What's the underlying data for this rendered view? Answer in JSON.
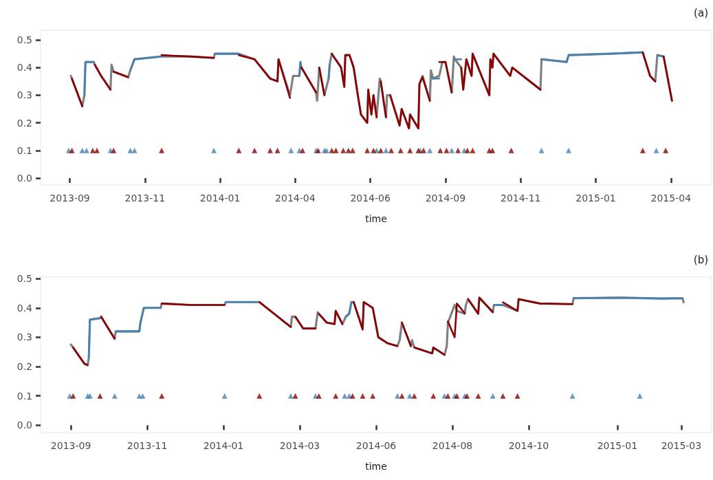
{
  "chart_data": [
    {
      "type": "line",
      "title": "(a)",
      "xlabel": "time",
      "xlim": [
        "2013-08-04",
        "2015-05-09"
      ],
      "xticks": [
        {
          "value": "2013-09-01",
          "label": "2013-09"
        },
        {
          "value": "2013-11-12",
          "label": "2013-11"
        },
        {
          "value": "2014-01-23",
          "label": "2014-01"
        },
        {
          "value": "2014-04-05",
          "label": "2014-04"
        },
        {
          "value": "2014-06-16",
          "label": "2014-06"
        },
        {
          "value": "2014-08-27",
          "label": "2014-09"
        },
        {
          "value": "2014-11-07",
          "label": "2014-11"
        },
        {
          "value": "2015-01-18",
          "label": "2015-01"
        },
        {
          "value": "2015-03-31",
          "label": "2015-04"
        }
      ],
      "ylim": [
        -0.025,
        0.535
      ],
      "yticks": [
        {
          "value": 0,
          "label": "0.0"
        },
        0.1,
        0.2,
        0.3,
        0.4,
        0.5
      ],
      "grid": false,
      "x": [
        "2013-09-02",
        "2013-09-03",
        "2013-09-13",
        "2013-09-15",
        "2013-09-16",
        "2013-09-24",
        "2013-09-25",
        "2013-10-01",
        "2013-10-10",
        "2013-10-11",
        "2013-10-13",
        "2013-10-27",
        "2013-10-29",
        "2013-11-02",
        "2013-11-28",
        "2013-12-25",
        "2014-01-17",
        "2014-01-18",
        "2014-02-10",
        "2014-02-25",
        "2014-03-12",
        "2014-03-19",
        "2014-03-20",
        "2014-03-31",
        "2014-04-03",
        "2014-04-09",
        "2014-04-10",
        "2014-04-11",
        "2014-04-25",
        "2014-04-26",
        "2014-04-28",
        "2014-05-03",
        "2014-05-07",
        "2014-05-08",
        "2014-05-10",
        "2014-05-19",
        "2014-05-22",
        "2014-05-23",
        "2014-05-27",
        "2014-05-31",
        "2014-06-04",
        "2014-06-07",
        "2014-06-13",
        "2014-06-14",
        "2014-06-17",
        "2014-06-19",
        "2014-06-22",
        "2014-06-25",
        "2014-06-26",
        "2014-07-01",
        "2014-07-02",
        "2014-07-05",
        "2014-07-14",
        "2014-07-16",
        "2014-07-23",
        "2014-07-24",
        "2014-08-01",
        "2014-08-02",
        "2014-08-05",
        "2014-08-12",
        "2014-08-13",
        "2014-08-15",
        "2014-08-21",
        "2014-08-24",
        "2014-08-27",
        "2014-09-02",
        "2014-09-04",
        "2014-09-05",
        "2014-09-11",
        "2014-09-13",
        "2014-09-16",
        "2014-09-21",
        "2014-09-22",
        "2014-10-08",
        "2014-10-09",
        "2014-10-11",
        "2014-10-12",
        "2014-10-28",
        "2014-10-30",
        "2014-11-26",
        "2014-11-27",
        "2014-12-21",
        "2014-12-23",
        "2015-02-01",
        "2015-03-04",
        "2015-03-11",
        "2015-03-16",
        "2015-03-18",
        "2015-03-24",
        "2015-04-01"
      ],
      "series": [
        {
          "color": "#808080",
          "values": [
            0.37,
            0.36,
            0.26,
            0.3,
            0.42,
            0.42,
            0.41,
            0.37,
            0.32,
            0.41,
            0.385,
            0.365,
            0.39,
            0.43,
            0.44,
            0.44,
            0.435,
            0.45,
            0.45,
            0.43,
            0.36,
            0.35,
            0.43,
            0.3,
            0.37,
            0.37,
            0.42,
            0.4,
            0.31,
            0.28,
            0.4,
            0.3,
            0.36,
            0.41,
            0.45,
            0.4,
            0.33,
            0.445,
            0.445,
            0.4,
            0.3,
            0.23,
            0.2,
            0.32,
            0.23,
            0.3,
            0.22,
            0.36,
            0.35,
            0.22,
            0.3,
            0.3,
            0.19,
            0.25,
            0.18,
            0.23,
            0.18,
            0.34,
            0.37,
            0.28,
            0.39,
            0.36,
            0.37,
            0.42,
            0.42,
            0.31,
            0.44,
            0.43,
            0.4,
            0.32,
            0.43,
            0.37,
            0.45,
            0.3,
            0.43,
            0.4,
            0.45,
            0.37,
            0.4,
            0.32,
            0.43,
            0.42,
            0.445,
            0.45,
            0.455,
            0.37,
            0.35,
            0.445,
            0.44,
            0.28
          ]
        },
        {
          "color": "#4682b4",
          "values": [
            null,
            null,
            null,
            0.3,
            0.42,
            0.42,
            null,
            null,
            null,
            null,
            null,
            null,
            0.39,
            0.43,
            0.44,
            null,
            null,
            0.45,
            0.45,
            null,
            null,
            null,
            null,
            null,
            null,
            0.37,
            0.42,
            null,
            null,
            null,
            null,
            null,
            0.36,
            0.41,
            null,
            null,
            null,
            null,
            null,
            null,
            null,
            null,
            null,
            null,
            null,
            null,
            null,
            null,
            null,
            null,
            null,
            null,
            null,
            null,
            null,
            null,
            null,
            null,
            null,
            null,
            null,
            0.36,
            0.36,
            null,
            null,
            null,
            null,
            0.43,
            0.43,
            null,
            null,
            null,
            null,
            null,
            null,
            null,
            null,
            null,
            null,
            null,
            0.43,
            0.42,
            0.445,
            0.45,
            0.455,
            null,
            null,
            0.445,
            0.44,
            null
          ]
        },
        {
          "color": "#8b0000",
          "values": [
            null,
            0.36,
            0.26,
            null,
            null,
            null,
            0.41,
            0.37,
            0.32,
            null,
            0.385,
            0.365,
            null,
            null,
            0.445,
            0.44,
            0.435,
            null,
            0.445,
            0.43,
            0.36,
            0.35,
            0.43,
            0.29,
            null,
            null,
            null,
            0.4,
            0.31,
            null,
            0.4,
            0.3,
            null,
            null,
            0.45,
            0.4,
            0.33,
            0.445,
            0.445,
            0.4,
            0.3,
            0.23,
            0.2,
            0.32,
            0.23,
            0.3,
            0.22,
            null,
            0.35,
            0.22,
            null,
            0.3,
            0.19,
            0.25,
            0.18,
            0.23,
            0.18,
            0.34,
            0.365,
            0.28,
            null,
            null,
            0.42,
            0.42,
            0.42,
            0.31,
            null,
            null,
            0.4,
            0.32,
            0.43,
            0.37,
            0.45,
            0.3,
            0.43,
            0.4,
            0.45,
            0.37,
            0.4,
            0.32,
            null,
            null,
            null,
            null,
            0.455,
            0.37,
            0.35,
            null,
            0.44,
            0.28
          ]
        },
        {
          "type": "scatter",
          "marker": "triangle",
          "color": "#4682b4",
          "x": [
            "2013-08-31",
            "2013-09-13",
            "2013-09-17",
            "2013-10-10",
            "2013-10-29",
            "2013-11-02",
            "2014-01-17",
            "2014-04-01",
            "2014-04-09",
            "2014-04-25",
            "2014-05-03",
            "2014-05-05",
            "2014-06-22",
            "2014-07-01",
            "2014-08-03",
            "2014-08-12",
            "2014-09-02",
            "2014-09-14",
            "2014-11-27",
            "2014-12-23",
            "2015-03-17"
          ],
          "values": [
            0.1,
            0.1,
            0.1,
            0.1,
            0.1,
            0.1,
            0.1,
            0.1,
            0.1,
            0.1,
            0.1,
            0.1,
            0.1,
            0.1,
            0.1,
            0.1,
            0.1,
            0.1,
            0.1,
            0.1,
            0.1
          ]
        },
        {
          "type": "scatter",
          "marker": "triangle",
          "color": "#8b0000",
          "x": [
            "2013-09-03",
            "2013-09-23",
            "2013-09-27",
            "2013-10-13",
            "2013-11-28",
            "2014-02-10",
            "2014-02-25",
            "2014-03-12",
            "2014-03-19",
            "2014-04-12",
            "2014-04-27",
            "2014-05-10",
            "2014-05-14",
            "2014-05-21",
            "2014-05-26",
            "2014-05-30",
            "2014-06-13",
            "2014-06-19",
            "2014-06-26",
            "2014-07-06",
            "2014-07-15",
            "2014-07-24",
            "2014-08-01",
            "2014-08-06",
            "2014-08-22",
            "2014-08-28",
            "2014-09-08",
            "2014-09-17",
            "2014-09-22",
            "2014-10-08",
            "2014-10-11",
            "2014-10-29",
            "2015-03-04",
            "2015-03-26"
          ],
          "values": [
            0.1,
            0.1,
            0.1,
            0.1,
            0.1,
            0.1,
            0.1,
            0.1,
            0.1,
            0.1,
            0.1,
            0.1,
            0.1,
            0.1,
            0.1,
            0.1,
            0.1,
            0.1,
            0.1,
            0.1,
            0.1,
            0.1,
            0.1,
            0.1,
            0.1,
            0.1,
            0.1,
            0.1,
            0.1,
            0.1,
            0.1,
            0.1,
            0.1,
            0.1
          ]
        }
      ]
    },
    {
      "type": "line",
      "title": "(b)",
      "xlabel": "time",
      "xlim": [
        "2013-08-05",
        "2015-03-26"
      ],
      "xticks": [
        {
          "value": "2013-09-01",
          "label": "2013-09"
        },
        {
          "value": "2013-11-08",
          "label": "2013-11"
        },
        {
          "value": "2014-01-15",
          "label": "2014-01"
        },
        {
          "value": "2014-03-24",
          "label": "2014-03"
        },
        {
          "value": "2014-05-31",
          "label": "2014-06"
        },
        {
          "value": "2014-08-07",
          "label": "2014-08"
        },
        {
          "value": "2014-10-14",
          "label": "2014-10"
        },
        {
          "value": "2015-01-01",
          "label": "2015-01"
        },
        {
          "value": "2015-02-27",
          "label": "2015-03"
        }
      ],
      "ylim": [
        -0.025,
        0.505
      ],
      "yticks": [
        {
          "value": 0,
          "label": "0.0"
        },
        0.1,
        0.2,
        0.3,
        0.4,
        0.5
      ],
      "grid": false,
      "x": [
        "2013-09-01",
        "2013-09-03",
        "2013-09-13",
        "2013-09-16",
        "2013-09-17",
        "2013-09-18",
        "2013-09-27",
        "2013-09-28",
        "2013-10-10",
        "2013-10-11",
        "2013-11-01",
        "2013-11-02",
        "2013-11-05",
        "2013-11-20",
        "2013-11-21",
        "2013-12-17",
        "2014-01-16",
        "2014-01-17",
        "2014-02-16",
        "2014-03-16",
        "2014-03-17",
        "2014-03-20",
        "2014-03-27",
        "2014-04-07",
        "2014-04-09",
        "2014-04-10",
        "2014-04-17",
        "2014-04-24",
        "2014-04-25",
        "2014-05-01",
        "2014-05-04",
        "2014-05-07",
        "2014-05-09",
        "2014-05-11",
        "2014-05-19",
        "2014-05-20",
        "2014-05-28",
        "2014-06-02",
        "2014-06-10",
        "2014-06-19",
        "2014-06-21",
        "2014-06-23",
        "2014-07-01",
        "2014-07-02",
        "2014-07-04",
        "2014-07-20",
        "2014-07-21",
        "2014-07-31",
        "2014-08-02",
        "2014-08-03",
        "2014-08-09",
        "2014-08-11",
        "2014-08-18",
        "2014-08-19",
        "2014-08-21",
        "2014-08-30",
        "2014-08-31",
        "2014-09-12",
        "2014-09-13",
        "2014-09-21",
        "2014-10-04",
        "2014-10-05",
        "2014-10-24",
        "2014-11-22",
        "2014-11-23",
        "2015-01-04",
        "2015-02-10",
        "2015-02-28",
        "2015-03-01"
      ],
      "series": [
        {
          "color": "#808080",
          "values": [
            0.275,
            0.265,
            0.21,
            0.205,
            0.23,
            0.36,
            0.365,
            0.37,
            0.295,
            0.32,
            0.32,
            0.35,
            0.4,
            0.4,
            0.415,
            0.41,
            0.41,
            0.42,
            0.42,
            0.335,
            0.37,
            0.37,
            0.33,
            0.33,
            0.385,
            0.38,
            0.35,
            0.345,
            0.39,
            0.345,
            0.37,
            0.38,
            0.42,
            0.42,
            0.33,
            0.42,
            0.4,
            0.3,
            0.28,
            0.27,
            0.29,
            0.35,
            0.27,
            0.29,
            0.265,
            0.245,
            0.265,
            0.24,
            0.27,
            0.35,
            0.41,
            0.39,
            0.38,
            0.41,
            0.43,
            0.38,
            0.435,
            0.385,
            0.41,
            0.41,
            0.39,
            0.43,
            0.415,
            0.413,
            0.433,
            0.435,
            0.432,
            0.433,
            0.419
          ]
        },
        {
          "color": "#4682b4",
          "values": [
            null,
            null,
            null,
            null,
            0.23,
            0.36,
            0.365,
            null,
            null,
            0.32,
            0.32,
            0.35,
            0.4,
            0.4,
            null,
            null,
            null,
            0.42,
            0.42,
            null,
            null,
            null,
            null,
            null,
            null,
            null,
            null,
            null,
            null,
            null,
            0.37,
            0.38,
            0.42,
            null,
            null,
            null,
            null,
            null,
            null,
            null,
            null,
            null,
            null,
            null,
            null,
            null,
            null,
            null,
            null,
            null,
            null,
            null,
            null,
            null,
            null,
            null,
            null,
            null,
            0.41,
            0.41,
            null,
            null,
            null,
            null,
            0.433,
            0.435,
            0.432,
            0.433,
            null
          ]
        },
        {
          "color": "#8b0000",
          "values": [
            null,
            0.265,
            0.21,
            0.205,
            null,
            null,
            null,
            0.37,
            0.295,
            null,
            null,
            null,
            null,
            null,
            0.415,
            0.41,
            0.41,
            null,
            0.42,
            0.335,
            null,
            0.37,
            0.33,
            0.33,
            null,
            0.38,
            0.35,
            0.345,
            0.39,
            0.345,
            null,
            null,
            null,
            0.42,
            0.326,
            0.42,
            0.4,
            0.3,
            0.28,
            0.27,
            null,
            0.35,
            0.27,
            null,
            0.265,
            0.245,
            0.265,
            0.24,
            null,
            0.354,
            0.3,
            0.415,
            0.382,
            null,
            0.43,
            0.38,
            0.435,
            0.386,
            null,
            0.419,
            0.39,
            0.43,
            0.415,
            0.413,
            null,
            null,
            null,
            null,
            null
          ]
        },
        {
          "type": "scatter",
          "marker": "triangle",
          "color": "#4682b4",
          "x": [
            "2013-08-31",
            "2013-09-16",
            "2013-09-18",
            "2013-10-10",
            "2013-11-01",
            "2013-11-04",
            "2014-01-16",
            "2014-03-16",
            "2014-04-07",
            "2014-05-03",
            "2014-05-07",
            "2014-06-19",
            "2014-06-30",
            "2014-07-31",
            "2014-08-09",
            "2014-08-18",
            "2014-09-12",
            "2014-11-22",
            "2015-01-21"
          ],
          "values": [
            0.1,
            0.1,
            0.1,
            0.1,
            0.1,
            0.1,
            0.1,
            0.1,
            0.1,
            0.1,
            0.1,
            0.1,
            0.1,
            0.1,
            0.1,
            0.1,
            0.1,
            0.1,
            0.1
          ]
        },
        {
          "type": "scatter",
          "marker": "triangle",
          "color": "#8b0000",
          "x": [
            "2013-09-03",
            "2013-09-27",
            "2013-11-21",
            "2014-02-16",
            "2014-03-20",
            "2014-04-10",
            "2014-04-25",
            "2014-05-10",
            "2014-05-19",
            "2014-05-28",
            "2014-06-23",
            "2014-07-04",
            "2014-07-21",
            "2014-08-03",
            "2014-08-11",
            "2014-08-20",
            "2014-08-30",
            "2014-09-21",
            "2014-10-04"
          ],
          "values": [
            0.1,
            0.1,
            0.1,
            0.1,
            0.1,
            0.1,
            0.1,
            0.1,
            0.1,
            0.1,
            0.1,
            0.1,
            0.1,
            0.1,
            0.1,
            0.1,
            0.1,
            0.1,
            0.1
          ]
        }
      ]
    }
  ]
}
